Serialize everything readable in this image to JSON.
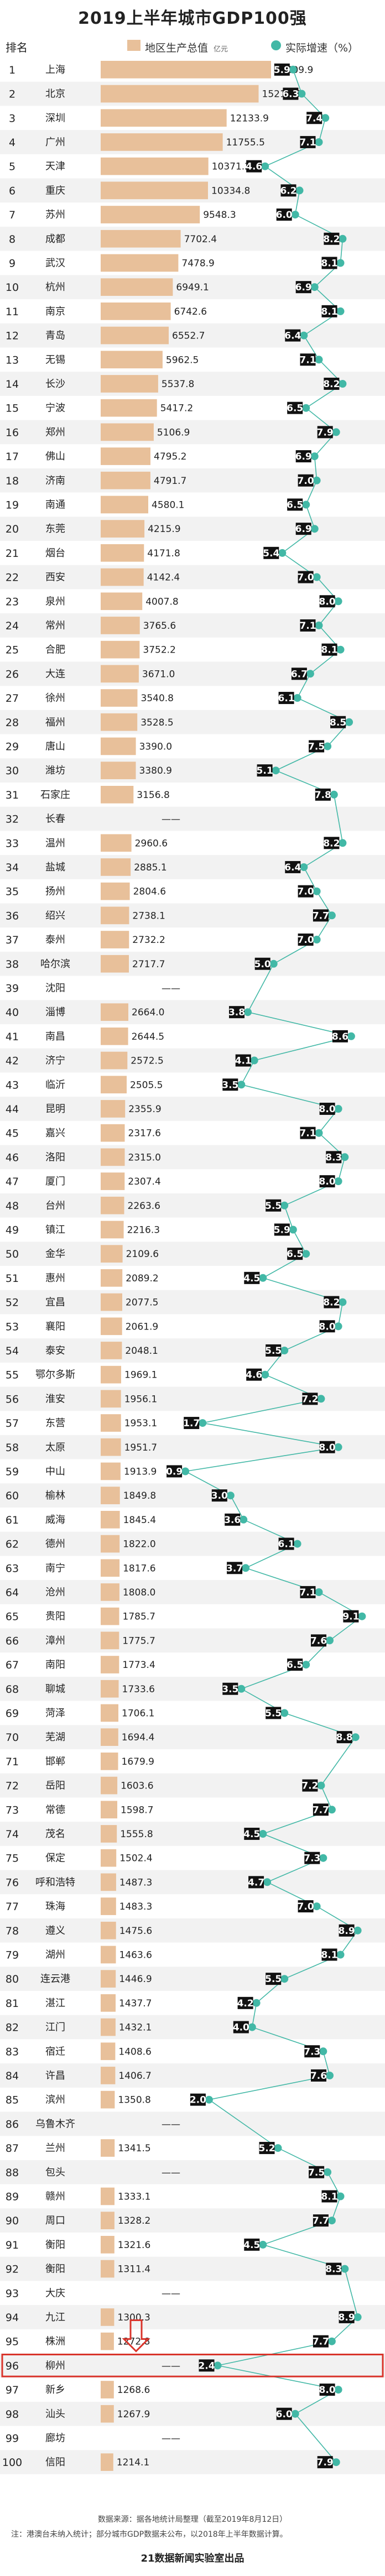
{
  "title": "2019上半年城市GDP100强",
  "legend": {
    "rank_header": "排名",
    "gdp_label": "地区生产总值",
    "gdp_unit": "亿元",
    "growth_label": "实际增速（%）",
    "bar_color": "#e8c09a",
    "growth_color": "#42b8a6",
    "highlight_color": "#d9342b"
  },
  "chart_data": {
    "type": "bar",
    "title": "2019上半年城市GDP100强",
    "xlabel": "",
    "ylabel": "",
    "series": [
      {
        "name": "地区生产总值",
        "unit": "亿元"
      },
      {
        "name": "实际增速（%）"
      }
    ],
    "gdp_max": 16409.9,
    "highlight_rank": 96,
    "rows": [
      {
        "rank": "1",
        "city": "上海",
        "gdp": "16409.9",
        "growth": "5.9"
      },
      {
        "rank": "2",
        "city": "北京",
        "gdp": "15212.5",
        "growth": "6.3"
      },
      {
        "rank": "3",
        "city": "深圳",
        "gdp": "12133.9",
        "growth": "7.4"
      },
      {
        "rank": "4",
        "city": "广州",
        "gdp": "11755.5",
        "growth": "7.1"
      },
      {
        "rank": "5",
        "city": "天津",
        "gdp": "10371.2",
        "growth": "4.6"
      },
      {
        "rank": "6",
        "city": "重庆",
        "gdp": "10334.8",
        "growth": "6.2"
      },
      {
        "rank": "7",
        "city": "苏州",
        "gdp": "9548.3",
        "growth": "6.0"
      },
      {
        "rank": "8",
        "city": "成都",
        "gdp": "7702.4",
        "growth": "8.2"
      },
      {
        "rank": "9",
        "city": "武汉",
        "gdp": "7478.9",
        "growth": "8.1"
      },
      {
        "rank": "10",
        "city": "杭州",
        "gdp": "6949.1",
        "growth": "6.9"
      },
      {
        "rank": "11",
        "city": "南京",
        "gdp": "6742.6",
        "growth": "8.1"
      },
      {
        "rank": "12",
        "city": "青岛",
        "gdp": "6552.7",
        "growth": "6.4"
      },
      {
        "rank": "13",
        "city": "无锡",
        "gdp": "5962.5",
        "growth": "7.1"
      },
      {
        "rank": "14",
        "city": "长沙",
        "gdp": "5537.8",
        "growth": "8.2"
      },
      {
        "rank": "15",
        "city": "宁波",
        "gdp": "5417.2",
        "growth": "6.5"
      },
      {
        "rank": "16",
        "city": "郑州",
        "gdp": "5106.9",
        "growth": "7.9"
      },
      {
        "rank": "17",
        "city": "佛山",
        "gdp": "4795.2",
        "growth": "6.9"
      },
      {
        "rank": "18",
        "city": "济南",
        "gdp": "4791.7",
        "growth": "7.0"
      },
      {
        "rank": "19",
        "city": "南通",
        "gdp": "4580.1",
        "growth": "6.5"
      },
      {
        "rank": "20",
        "city": "东莞",
        "gdp": "4215.9",
        "growth": "6.9"
      },
      {
        "rank": "21",
        "city": "烟台",
        "gdp": "4171.8",
        "growth": "5.4"
      },
      {
        "rank": "22",
        "city": "西安",
        "gdp": "4142.4",
        "growth": "7.0"
      },
      {
        "rank": "23",
        "city": "泉州",
        "gdp": "4007.8",
        "growth": "8.0"
      },
      {
        "rank": "24",
        "city": "常州",
        "gdp": "3765.6",
        "growth": "7.1"
      },
      {
        "rank": "25",
        "city": "合肥",
        "gdp": "3752.2",
        "growth": "8.1"
      },
      {
        "rank": "26",
        "city": "大连",
        "gdp": "3671.0",
        "growth": "6.7"
      },
      {
        "rank": "27",
        "city": "徐州",
        "gdp": "3540.8",
        "growth": "6.1"
      },
      {
        "rank": "28",
        "city": "福州",
        "gdp": "3528.5",
        "growth": "8.5"
      },
      {
        "rank": "29",
        "city": "唐山",
        "gdp": "3390.0",
        "growth": "7.5"
      },
      {
        "rank": "30",
        "city": "潍坊",
        "gdp": "3380.9",
        "growth": "5.1"
      },
      {
        "rank": "31",
        "city": "石家庄",
        "gdp": "3156.8",
        "growth": "7.8"
      },
      {
        "rank": "32",
        "city": "长春",
        "gdp": "——",
        "growth": ""
      },
      {
        "rank": "33",
        "city": "温州",
        "gdp": "2960.6",
        "growth": "8.2"
      },
      {
        "rank": "34",
        "city": "盐城",
        "gdp": "2885.1",
        "growth": "6.4"
      },
      {
        "rank": "35",
        "city": "扬州",
        "gdp": "2804.6",
        "growth": "7.0"
      },
      {
        "rank": "36",
        "city": "绍兴",
        "gdp": "2738.1",
        "growth": "7.7"
      },
      {
        "rank": "37",
        "city": "泰州",
        "gdp": "2732.2",
        "growth": "7.0"
      },
      {
        "rank": "38",
        "city": "哈尔滨",
        "gdp": "2717.7",
        "growth": "5.0"
      },
      {
        "rank": "39",
        "city": "沈阳",
        "gdp": "——",
        "growth": ""
      },
      {
        "rank": "40",
        "city": "淄博",
        "gdp": "2664.0",
        "growth": "3.8"
      },
      {
        "rank": "41",
        "city": "南昌",
        "gdp": "2644.5",
        "growth": "8.6"
      },
      {
        "rank": "42",
        "city": "济宁",
        "gdp": "2572.5",
        "growth": "4.1"
      },
      {
        "rank": "43",
        "city": "临沂",
        "gdp": "2505.5",
        "growth": "3.5"
      },
      {
        "rank": "44",
        "city": "昆明",
        "gdp": "2355.9",
        "growth": "8.0"
      },
      {
        "rank": "45",
        "city": "嘉兴",
        "gdp": "2317.6",
        "growth": "7.1"
      },
      {
        "rank": "46",
        "city": "洛阳",
        "gdp": "2315.0",
        "growth": "8.3"
      },
      {
        "rank": "47",
        "city": "厦门",
        "gdp": "2307.4",
        "growth": "8.0"
      },
      {
        "rank": "48",
        "city": "台州",
        "gdp": "2263.6",
        "growth": "5.5"
      },
      {
        "rank": "49",
        "city": "镇江",
        "gdp": "2216.3",
        "growth": "5.9"
      },
      {
        "rank": "50",
        "city": "金华",
        "gdp": "2109.6",
        "growth": "6.5"
      },
      {
        "rank": "51",
        "city": "惠州",
        "gdp": "2089.2",
        "growth": "4.5"
      },
      {
        "rank": "52",
        "city": "宜昌",
        "gdp": "2077.5",
        "growth": "8.2"
      },
      {
        "rank": "53",
        "city": "襄阳",
        "gdp": "2061.9",
        "growth": "8.0"
      },
      {
        "rank": "54",
        "city": "泰安",
        "gdp": "2048.1",
        "growth": "5.5"
      },
      {
        "rank": "55",
        "city": "鄂尔多斯",
        "gdp": "1969.1",
        "growth": "4.6"
      },
      {
        "rank": "56",
        "city": "淮安",
        "gdp": "1956.1",
        "growth": "7.2"
      },
      {
        "rank": "57",
        "city": "东营",
        "gdp": "1953.1",
        "growth": "1.7"
      },
      {
        "rank": "58",
        "city": "太原",
        "gdp": "1951.7",
        "growth": "8.0"
      },
      {
        "rank": "59",
        "city": "中山",
        "gdp": "1913.9",
        "growth": "0.9"
      },
      {
        "rank": "60",
        "city": "榆林",
        "gdp": "1849.8",
        "growth": "3.0"
      },
      {
        "rank": "61",
        "city": "威海",
        "gdp": "1845.4",
        "growth": "3.6"
      },
      {
        "rank": "62",
        "city": "德州",
        "gdp": "1822.0",
        "growth": "6.1"
      },
      {
        "rank": "63",
        "city": "南宁",
        "gdp": "1817.6",
        "growth": "3.7"
      },
      {
        "rank": "64",
        "city": "沧州",
        "gdp": "1808.0",
        "growth": "7.1"
      },
      {
        "rank": "65",
        "city": "贵阳",
        "gdp": "1785.7",
        "growth": "9.1"
      },
      {
        "rank": "66",
        "city": "漳州",
        "gdp": "1775.7",
        "growth": "7.6"
      },
      {
        "rank": "67",
        "city": "南阳",
        "gdp": "1773.4",
        "growth": "6.5"
      },
      {
        "rank": "68",
        "city": "聊城",
        "gdp": "1733.6",
        "growth": "3.5"
      },
      {
        "rank": "69",
        "city": "菏泽",
        "gdp": "1706.1",
        "growth": "5.5"
      },
      {
        "rank": "70",
        "city": "芜湖",
        "gdp": "1694.4",
        "growth": "8.8"
      },
      {
        "rank": "71",
        "city": "邯郸",
        "gdp": "1679.9",
        "growth": ""
      },
      {
        "rank": "72",
        "city": "岳阳",
        "gdp": "1603.6",
        "growth": "7.2"
      },
      {
        "rank": "73",
        "city": "常德",
        "gdp": "1598.7",
        "growth": "7.7"
      },
      {
        "rank": "74",
        "city": "茂名",
        "gdp": "1555.8",
        "growth": "4.5"
      },
      {
        "rank": "75",
        "city": "保定",
        "gdp": "1502.4",
        "growth": "7.3"
      },
      {
        "rank": "76",
        "city": "呼和浩特",
        "gdp": "1487.3",
        "growth": "4.7"
      },
      {
        "rank": "77",
        "city": "珠海",
        "gdp": "1483.3",
        "growth": "7.0"
      },
      {
        "rank": "78",
        "city": "遵义",
        "gdp": "1475.6",
        "growth": "8.9"
      },
      {
        "rank": "79",
        "city": "湖州",
        "gdp": "1463.6",
        "growth": "8.1"
      },
      {
        "rank": "80",
        "city": "连云港",
        "gdp": "1446.9",
        "growth": "5.5"
      },
      {
        "rank": "81",
        "city": "湛江",
        "gdp": "1437.7",
        "growth": "4.2"
      },
      {
        "rank": "82",
        "city": "江门",
        "gdp": "1432.1",
        "growth": "4.0"
      },
      {
        "rank": "83",
        "city": "宿迁",
        "gdp": "1408.6",
        "growth": "7.3"
      },
      {
        "rank": "84",
        "city": "许昌",
        "gdp": "1406.7",
        "growth": "7.6"
      },
      {
        "rank": "85",
        "city": "滨州",
        "gdp": "1350.8",
        "growth": "2.0"
      },
      {
        "rank": "86",
        "city": "乌鲁木齐",
        "gdp": "——",
        "growth": ""
      },
      {
        "rank": "87",
        "city": "兰州",
        "gdp": "1341.5",
        "growth": "5.2"
      },
      {
        "rank": "88",
        "city": "包头",
        "gdp": "——",
        "growth": "7.5"
      },
      {
        "rank": "89",
        "city": "赣州",
        "gdp": "1333.1",
        "growth": "8.1"
      },
      {
        "rank": "90",
        "city": "周口",
        "gdp": "1328.2",
        "growth": "7.7"
      },
      {
        "rank": "91",
        "city": "衡阳",
        "gdp": "1321.6",
        "growth": "4.5"
      },
      {
        "rank": "92",
        "city": "衡阳",
        "gdp": "1311.4",
        "growth": "8.3"
      },
      {
        "rank": "93",
        "city": "大庆",
        "gdp": "——",
        "growth": ""
      },
      {
        "rank": "94",
        "city": "九江",
        "gdp": "1300.3",
        "growth": "8.9"
      },
      {
        "rank": "95",
        "city": "株洲",
        "gdp": "1272.8",
        "growth": "7.7"
      },
      {
        "rank": "96",
        "city": "柳州",
        "gdp": "——",
        "growth": "2.4"
      },
      {
        "rank": "97",
        "city": "新乡",
        "gdp": "1268.6",
        "growth": "8.0"
      },
      {
        "rank": "98",
        "city": "汕头",
        "gdp": "1267.9",
        "growth": "6.0"
      },
      {
        "rank": "99",
        "city": "廊坊",
        "gdp": "——",
        "growth": ""
      },
      {
        "rank": "100",
        "city": "信阳",
        "gdp": "1214.1",
        "growth": "7.9"
      }
    ]
  },
  "footer": {
    "source": "数据来源：据各地统计局整理（截至2019年8月12日）",
    "note": "注：港澳台未纳入统计；部分城市GDP数据未公布，以2018年上半年数据计算。",
    "brand": "21数据新闻实验室出品"
  }
}
